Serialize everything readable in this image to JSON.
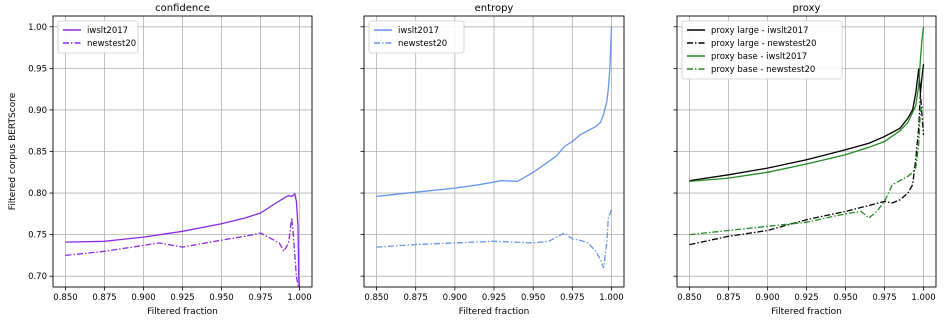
{
  "chart_data": [
    {
      "type": "line",
      "title": "confidence",
      "xlabel": "Filtered fraction",
      "ylabel": "Filtered corpus BERTScore",
      "xlim": [
        0.842,
        1.008
      ],
      "ylim": [
        0.687,
        1.013
      ],
      "xticks": [
        "0.850",
        "0.875",
        "0.900",
        "0.925",
        "0.950",
        "0.975",
        "1.000"
      ],
      "yticks": [
        "0.70",
        "0.75",
        "0.80",
        "0.85",
        "0.90",
        "0.95",
        "1.00"
      ],
      "grid": true,
      "legend_position": "top-left",
      "series": [
        {
          "name": "iwslt2017",
          "color": "#8a2be2",
          "dash": "solid",
          "points": [
            [
              0.85,
              0.741
            ],
            [
              0.875,
              0.742
            ],
            [
              0.9,
              0.747
            ],
            [
              0.925,
              0.754
            ],
            [
              0.95,
              0.763
            ],
            [
              0.965,
              0.77
            ],
            [
              0.975,
              0.776
            ],
            [
              0.98,
              0.782
            ],
            [
              0.985,
              0.788
            ],
            [
              0.99,
              0.794
            ],
            [
              0.993,
              0.797
            ],
            [
              0.995,
              0.796
            ],
            [
              0.997,
              0.799
            ],
            [
              0.998,
              0.79
            ],
            [
              0.999,
              0.76
            ],
            [
              0.9995,
              0.7
            ],
            [
              1.0,
              0.683
            ]
          ]
        },
        {
          "name": "newstest20",
          "color": "#8a2be2",
          "dash": "dashdot",
          "points": [
            [
              0.85,
              0.725
            ],
            [
              0.875,
              0.73
            ],
            [
              0.9,
              0.737
            ],
            [
              0.91,
              0.74
            ],
            [
              0.925,
              0.735
            ],
            [
              0.94,
              0.74
            ],
            [
              0.955,
              0.745
            ],
            [
              0.965,
              0.748
            ],
            [
              0.975,
              0.752
            ],
            [
              0.982,
              0.745
            ],
            [
              0.987,
              0.74
            ],
            [
              0.99,
              0.73
            ],
            [
              0.993,
              0.74
            ],
            [
              0.995,
              0.77
            ],
            [
              0.996,
              0.75
            ],
            [
              0.998,
              0.7
            ],
            [
              1.0,
              0.68
            ]
          ]
        }
      ]
    },
    {
      "type": "line",
      "title": "entropy",
      "xlabel": "Filtered fraction",
      "ylabel": "",
      "xlim": [
        0.842,
        1.008
      ],
      "ylim": [
        0.687,
        1.013
      ],
      "xticks": [
        "0.850",
        "0.875",
        "0.900",
        "0.925",
        "0.950",
        "0.975",
        "1.000"
      ],
      "yticks": [],
      "grid": true,
      "legend_position": "top-left",
      "series": [
        {
          "name": "iwslt2017",
          "color": "#6495ed",
          "dash": "solid",
          "points": [
            [
              0.85,
              0.796
            ],
            [
              0.875,
              0.801
            ],
            [
              0.9,
              0.806
            ],
            [
              0.915,
              0.81
            ],
            [
              0.93,
              0.815
            ],
            [
              0.94,
              0.814
            ],
            [
              0.95,
              0.825
            ],
            [
              0.96,
              0.838
            ],
            [
              0.965,
              0.845
            ],
            [
              0.97,
              0.856
            ],
            [
              0.975,
              0.862
            ],
            [
              0.98,
              0.87
            ],
            [
              0.985,
              0.875
            ],
            [
              0.99,
              0.88
            ],
            [
              0.993,
              0.885
            ],
            [
              0.995,
              0.895
            ],
            [
              0.997,
              0.91
            ],
            [
              0.998,
              0.925
            ],
            [
              0.999,
              0.95
            ],
            [
              1.0,
              1.0
            ]
          ]
        },
        {
          "name": "newstest20",
          "color": "#6495ed",
          "dash": "dashdot",
          "points": [
            [
              0.85,
              0.735
            ],
            [
              0.875,
              0.738
            ],
            [
              0.9,
              0.74
            ],
            [
              0.925,
              0.742
            ],
            [
              0.95,
              0.74
            ],
            [
              0.96,
              0.742
            ],
            [
              0.97,
              0.752
            ],
            [
              0.975,
              0.745
            ],
            [
              0.98,
              0.743
            ],
            [
              0.985,
              0.74
            ],
            [
              0.99,
              0.73
            ],
            [
              0.993,
              0.72
            ],
            [
              0.995,
              0.71
            ],
            [
              0.997,
              0.74
            ],
            [
              0.998,
              0.77
            ],
            [
              1.0,
              0.78
            ]
          ]
        }
      ]
    },
    {
      "type": "line",
      "title": "proxy",
      "xlabel": "Filtered fraction",
      "ylabel": "",
      "xlim": [
        0.842,
        1.008
      ],
      "ylim": [
        0.687,
        1.013
      ],
      "xticks": [
        "0.850",
        "0.875",
        "0.900",
        "0.925",
        "0.950",
        "0.975",
        "1.000"
      ],
      "yticks": [],
      "grid": true,
      "legend_position": "top-left",
      "series": [
        {
          "name": "proxy large - iwslt2017",
          "color": "#000000",
          "dash": "solid",
          "points": [
            [
              0.85,
              0.815
            ],
            [
              0.875,
              0.822
            ],
            [
              0.9,
              0.83
            ],
            [
              0.925,
              0.84
            ],
            [
              0.95,
              0.852
            ],
            [
              0.965,
              0.86
            ],
            [
              0.975,
              0.868
            ],
            [
              0.985,
              0.878
            ],
            [
              0.99,
              0.89
            ],
            [
              0.993,
              0.9
            ],
            [
              0.995,
              0.92
            ],
            [
              0.997,
              0.95
            ],
            [
              0.998,
              0.92
            ],
            [
              0.999,
              0.94
            ],
            [
              1.0,
              0.955
            ]
          ]
        },
        {
          "name": "proxy large - newstest20",
          "color": "#000000",
          "dash": "dashdot",
          "points": [
            [
              0.85,
              0.738
            ],
            [
              0.875,
              0.748
            ],
            [
              0.9,
              0.755
            ],
            [
              0.925,
              0.768
            ],
            [
              0.95,
              0.778
            ],
            [
              0.965,
              0.785
            ],
            [
              0.975,
              0.79
            ],
            [
              0.98,
              0.788
            ],
            [
              0.985,
              0.792
            ],
            [
              0.99,
              0.8
            ],
            [
              0.993,
              0.81
            ],
            [
              0.995,
              0.84
            ],
            [
              0.997,
              0.88
            ],
            [
              0.998,
              0.92
            ],
            [
              1.0,
              0.87
            ]
          ]
        },
        {
          "name": "proxy base - iwslt2017",
          "color": "#228b22",
          "dash": "solid",
          "points": [
            [
              0.85,
              0.814
            ],
            [
              0.875,
              0.818
            ],
            [
              0.9,
              0.825
            ],
            [
              0.925,
              0.835
            ],
            [
              0.95,
              0.846
            ],
            [
              0.965,
              0.855
            ],
            [
              0.975,
              0.862
            ],
            [
              0.985,
              0.875
            ],
            [
              0.99,
              0.885
            ],
            [
              0.995,
              0.905
            ],
            [
              0.997,
              0.93
            ],
            [
              0.998,
              0.96
            ],
            [
              0.999,
              0.985
            ],
            [
              1.0,
              1.0
            ]
          ]
        },
        {
          "name": "proxy base - newstest20",
          "color": "#228b22",
          "dash": "dashdot",
          "points": [
            [
              0.85,
              0.75
            ],
            [
              0.875,
              0.755
            ],
            [
              0.9,
              0.76
            ],
            [
              0.925,
              0.765
            ],
            [
              0.95,
              0.775
            ],
            [
              0.96,
              0.778
            ],
            [
              0.965,
              0.77
            ],
            [
              0.97,
              0.778
            ],
            [
              0.975,
              0.79
            ],
            [
              0.98,
              0.81
            ],
            [
              0.985,
              0.815
            ],
            [
              0.99,
              0.82
            ],
            [
              0.993,
              0.825
            ],
            [
              0.995,
              0.83
            ],
            [
              0.997,
              0.86
            ],
            [
              0.998,
              0.9
            ],
            [
              1.0,
              0.905
            ]
          ]
        }
      ]
    }
  ]
}
